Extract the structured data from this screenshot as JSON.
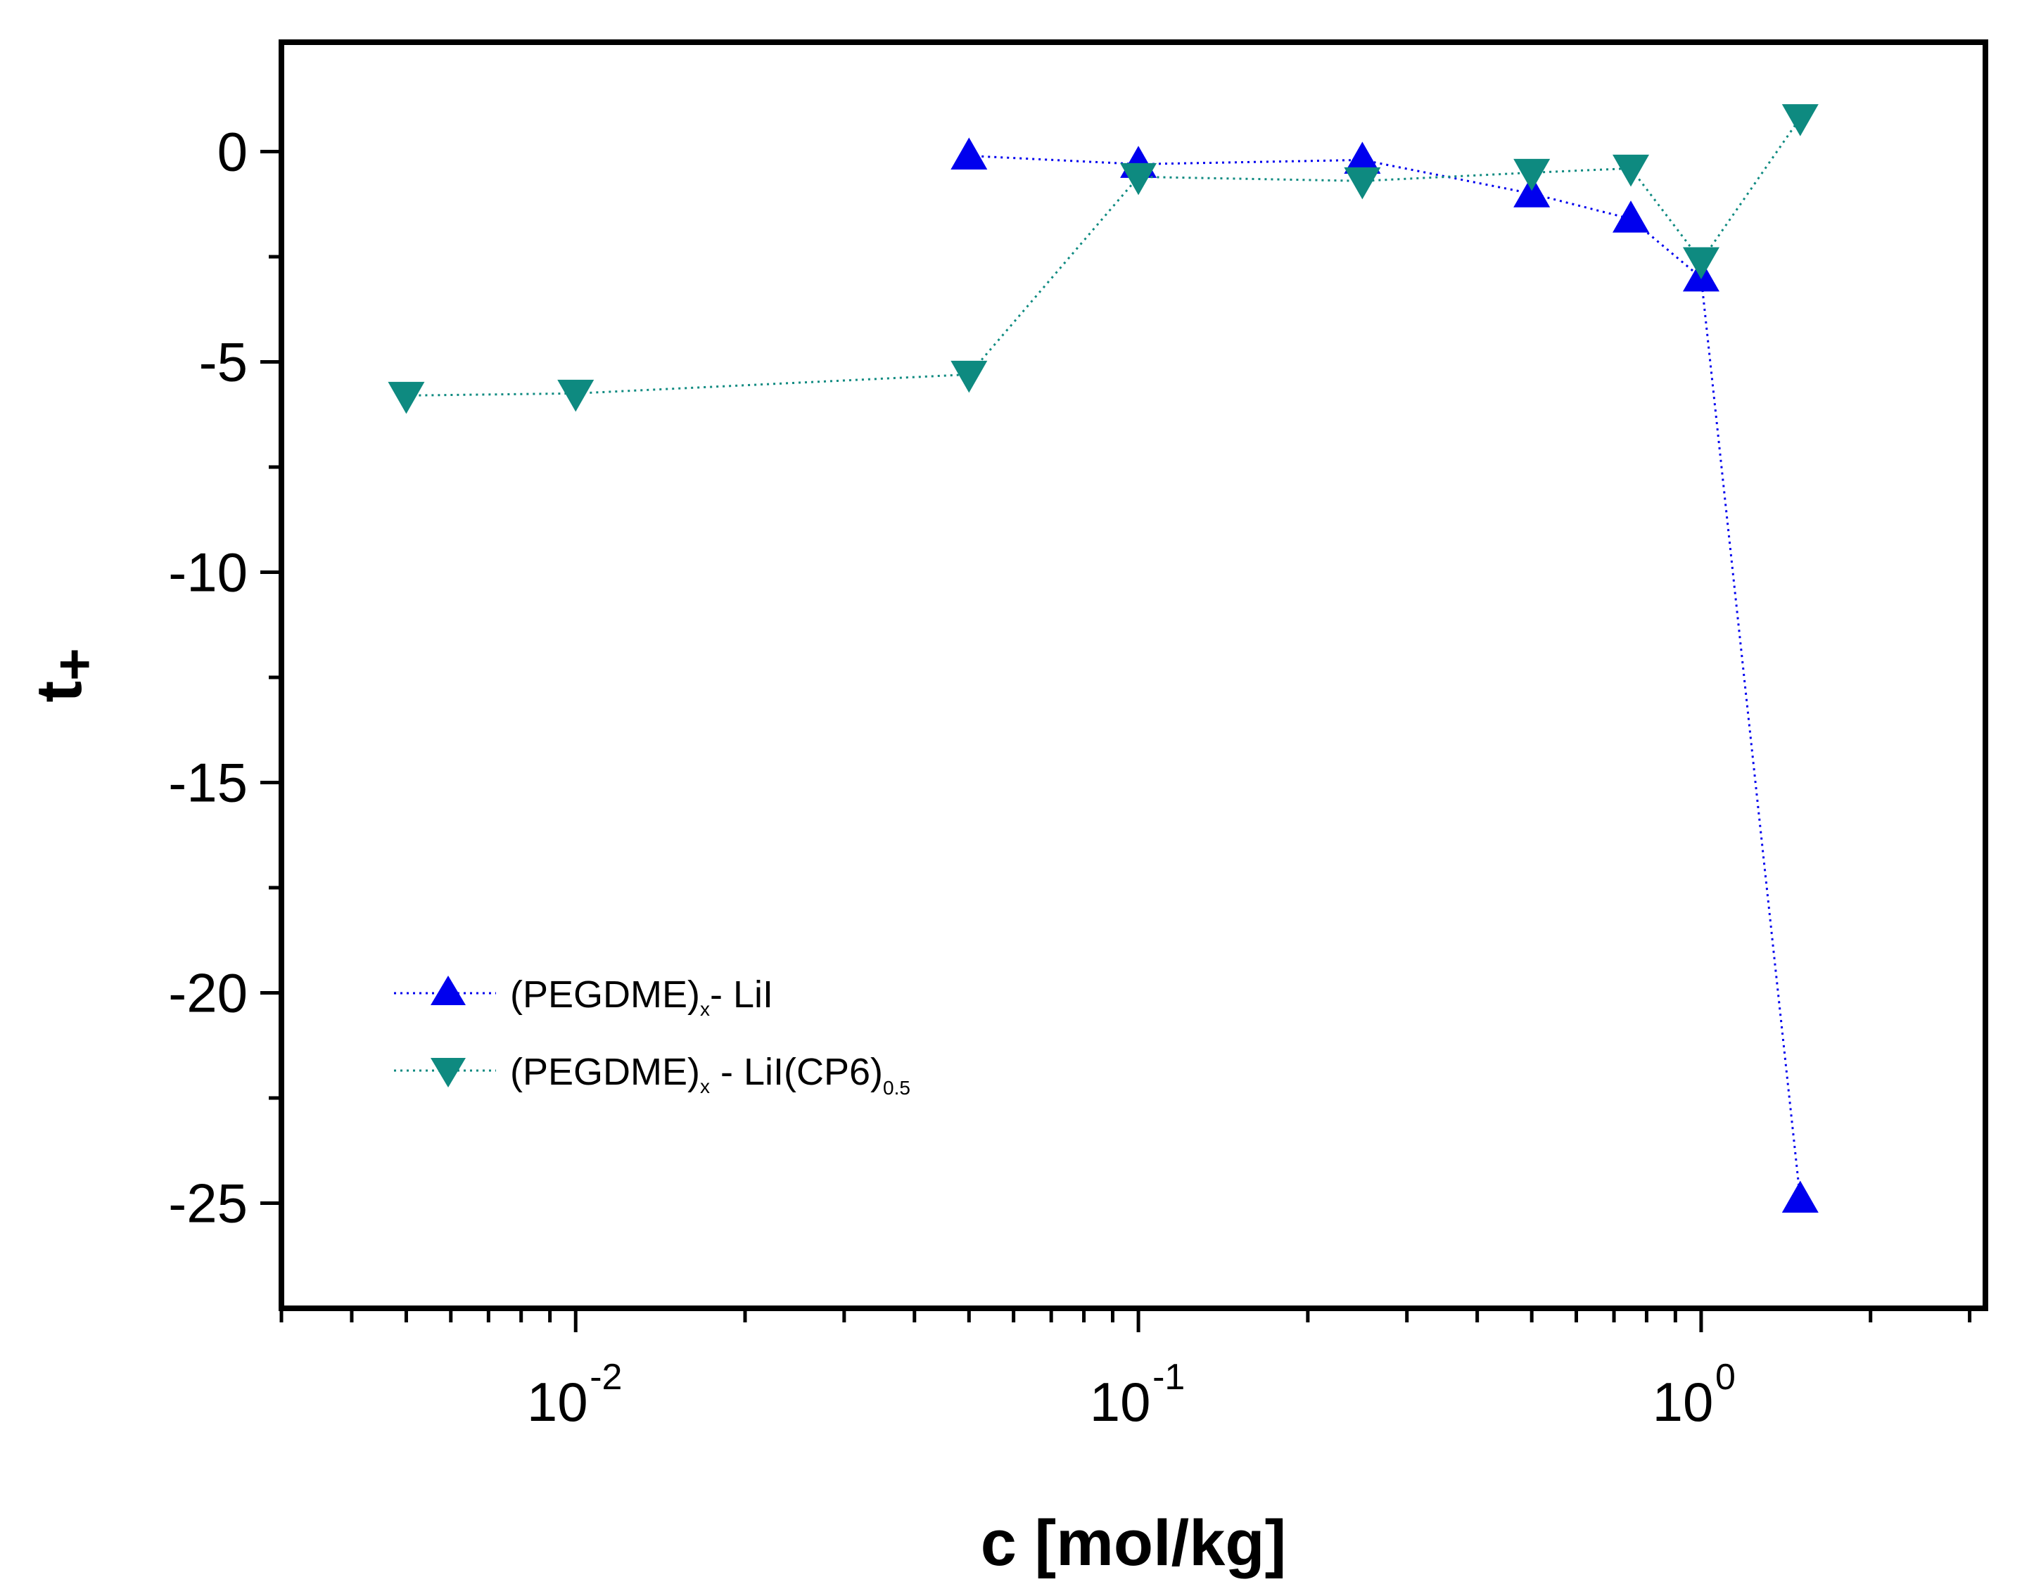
{
  "chart_data": {
    "type": "scatter",
    "title": "",
    "xlabel": "c [mol/kg]",
    "ylabel_main": "t",
    "ylabel_sub": "+",
    "xscale": "log",
    "xlim": [
      0.003,
      3.2
    ],
    "ylim": [
      -27.5,
      2.6
    ],
    "y_ticks": [
      0,
      -5,
      -10,
      -15,
      -20,
      -25
    ],
    "y_tick_labels": [
      "0",
      "-5",
      "-10",
      "-15",
      "-20",
      "-25"
    ],
    "x_major_ticks": [
      0.01,
      0.1,
      1
    ],
    "x_tick_labels": [
      {
        "base": "10",
        "exp": "-2"
      },
      {
        "base": "10",
        "exp": "-1"
      },
      {
        "base": "10",
        "exp": "0"
      }
    ],
    "legend_position": "lower-left",
    "series": [
      {
        "name": "(PEGDME)x- LiI",
        "legend_main": "(PEGDME)",
        "legend_sub": "x",
        "legend_tail": "- LiI",
        "color": "#0000ee",
        "marker": "triangle-up",
        "line": "dotted",
        "x": [
          0.05,
          0.1,
          0.25,
          0.5,
          0.75,
          1.0,
          1.5
        ],
        "y": [
          -0.1,
          -0.3,
          -0.2,
          -1.0,
          -1.6,
          -3.0,
          -24.9
        ]
      },
      {
        "name": "(PEGDME)x - LiI(CP6)0.5",
        "legend_main": "(PEGDME)",
        "legend_sub": "x",
        "legend_tail": " - LiI(CP6)",
        "legend_sub2": "0.5",
        "color": "#0e8a80",
        "marker": "triangle-down",
        "line": "dotted",
        "x": [
          0.005,
          0.01,
          0.05,
          0.1,
          0.25,
          0.5,
          0.75,
          1.0,
          1.5
        ],
        "y": [
          -5.8,
          -5.75,
          -5.3,
          -0.6,
          -0.7,
          -0.5,
          -0.4,
          -2.6,
          0.8
        ]
      }
    ]
  }
}
